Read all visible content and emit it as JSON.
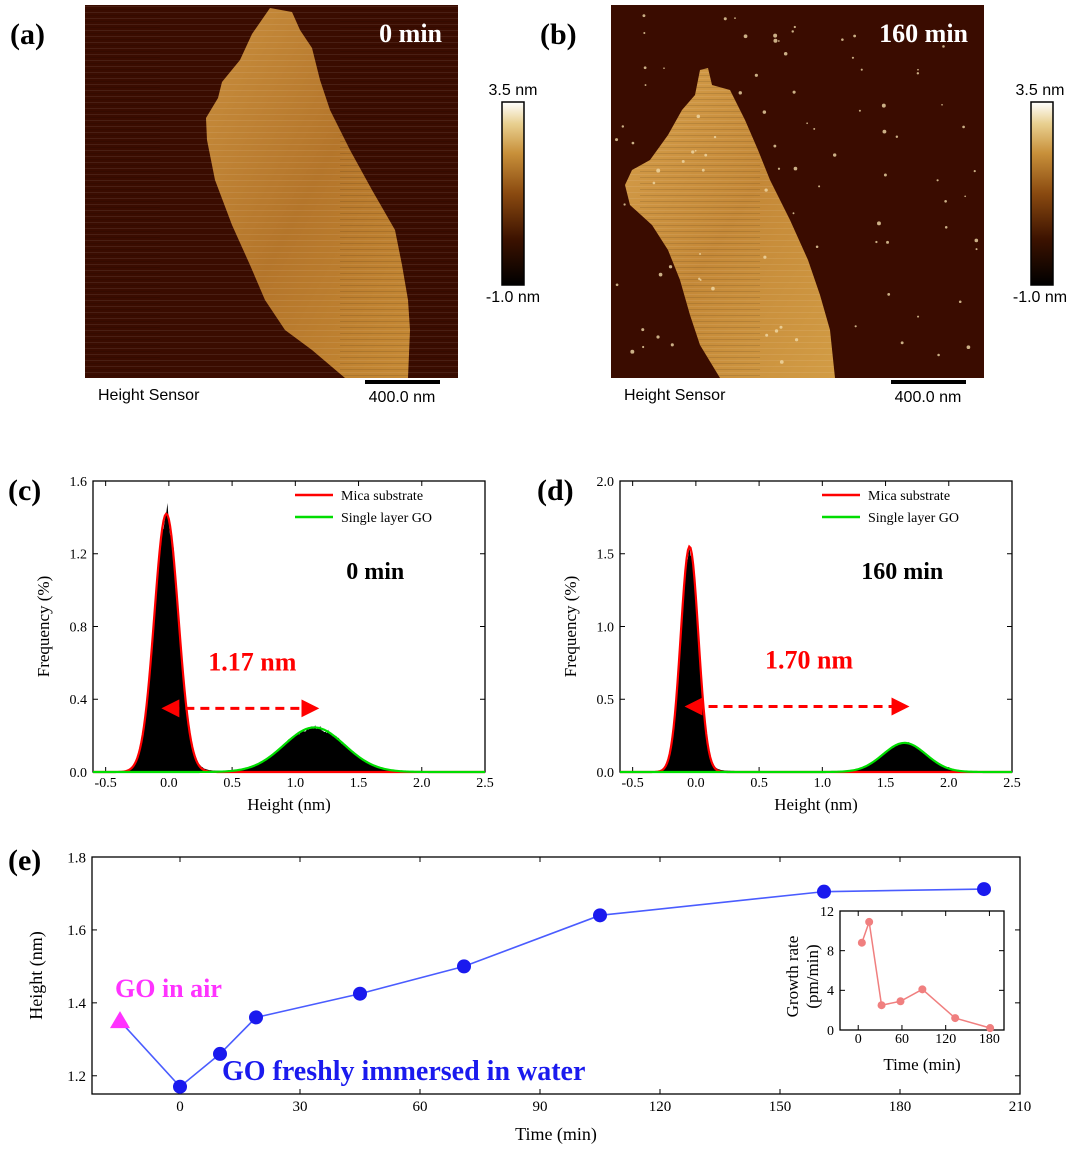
{
  "colors": {
    "mica": "#ff0000",
    "go": "#00dd00",
    "main_series": "#1a1aee",
    "line_main": "#4a5cff",
    "air_marker": "#ff33ff",
    "inset": "#f07f7f",
    "annot": "#ff0000"
  },
  "panels": {
    "a": {
      "label": "(a)",
      "time": "0 min",
      "sensor": "Height Sensor",
      "scalebar": "400.0 nm",
      "cbar_max": "3.5 nm",
      "cbar_min": "-1.0 nm"
    },
    "b": {
      "label": "(b)",
      "time": "160 min",
      "sensor": "Height Sensor",
      "scalebar": "400.0 nm",
      "cbar_max": "3.5 nm",
      "cbar_min": "-1.0 nm"
    },
    "c_label": "(c)",
    "d_label": "(d)",
    "e_label": "(e)"
  },
  "chart_data": [
    {
      "id": "c",
      "type": "area",
      "title": "0 min",
      "xlabel": "Height (nm)",
      "ylabel": "Frequency (%)",
      "xlim": [
        -0.6,
        2.5
      ],
      "ylim": [
        0,
        1.6
      ],
      "xticks": [
        "-0.5",
        "0.0",
        "0.5",
        "1.0",
        "1.5",
        "2.0",
        "2.5"
      ],
      "xtick_values": [
        -0.5,
        0.0,
        0.5,
        1.0,
        1.5,
        2.0,
        2.5
      ],
      "yticks": [
        "0.0",
        "0.4",
        "0.8",
        "1.2",
        "1.6"
      ],
      "ytick_values": [
        0.0,
        0.4,
        0.8,
        1.2,
        1.6
      ],
      "legend": [
        "Mica substrate",
        "Single layer GO"
      ],
      "annotation": "1.17 nm",
      "arrow_from": -0.02,
      "arrow_to": 1.15,
      "arrow_y": 0.35,
      "fits": [
        {
          "name": "Mica substrate",
          "mu": -0.02,
          "sigma": 0.095,
          "amp": 1.42
        },
        {
          "name": "Single layer GO",
          "mu": 1.15,
          "sigma": 0.24,
          "amp": 0.245
        }
      ]
    },
    {
      "id": "d",
      "type": "area",
      "title": "160 min",
      "xlabel": "Height (nm)",
      "ylabel": "Frequency (%)",
      "xlim": [
        -0.6,
        2.5
      ],
      "ylim": [
        0,
        2.0
      ],
      "xticks": [
        "-0.5",
        "0.0",
        "0.5",
        "1.0",
        "1.5",
        "2.0",
        "2.5"
      ],
      "xtick_values": [
        -0.5,
        0.0,
        0.5,
        1.0,
        1.5,
        2.0,
        2.5
      ],
      "yticks": [
        "0.0",
        "0.5",
        "1.0",
        "1.5",
        "2.0"
      ],
      "ytick_values": [
        0.0,
        0.5,
        1.0,
        1.5,
        2.0
      ],
      "legend": [
        "Mica substrate",
        "Single layer GO"
      ],
      "annotation": "1.70 nm",
      "arrow_from": -0.05,
      "arrow_to": 1.65,
      "arrow_y": 0.45,
      "fits": [
        {
          "name": "Mica substrate",
          "mu": -0.05,
          "sigma": 0.07,
          "amp": 1.55
        },
        {
          "name": "Single layer GO",
          "mu": 1.65,
          "sigma": 0.17,
          "amp": 0.2
        }
      ]
    },
    {
      "id": "e",
      "type": "line",
      "xlabel": "Time (min)",
      "ylabel": "Height  (nm)",
      "xlim": [
        -22,
        210
      ],
      "ylim": [
        1.15,
        1.8
      ],
      "xticks": [
        "0",
        "30",
        "60",
        "90",
        "120",
        "150",
        "180",
        "210"
      ],
      "xtick_values": [
        0,
        30,
        60,
        90,
        120,
        150,
        180,
        210
      ],
      "yticks": [
        "1.2",
        "1.4",
        "1.6",
        "1.8"
      ],
      "ytick_values": [
        1.2,
        1.4,
        1.6,
        1.8
      ],
      "series": [
        {
          "name": "GO freshly immersed in water",
          "x": [
            -15,
            0,
            10,
            19,
            45,
            71,
            105,
            161,
            201
          ],
          "y": [
            1.35,
            1.17,
            1.26,
            1.36,
            1.425,
            1.5,
            1.64,
            1.705,
            1.712
          ]
        }
      ],
      "annotations": [
        "GO in air",
        "GO freshly immersed in water"
      ]
    },
    {
      "id": "e_inset",
      "type": "line",
      "xlabel": "Time (min)",
      "ylabel": "Growth rate (pm/min)",
      "xlim": [
        -25,
        200
      ],
      "ylim": [
        0,
        12
      ],
      "xticks": [
        "0",
        "60",
        "120",
        "180"
      ],
      "xtick_values": [
        0,
        60,
        120,
        180
      ],
      "yticks": [
        "0",
        "4",
        "8",
        "12"
      ],
      "ytick_values": [
        0,
        4,
        8,
        12
      ],
      "series": [
        {
          "name": "Growth rate",
          "x": [
            5,
            15,
            32,
            58,
            88,
            133,
            181
          ],
          "y": [
            8.8,
            10.9,
            2.5,
            2.9,
            4.1,
            1.2,
            0.2
          ]
        }
      ]
    }
  ]
}
